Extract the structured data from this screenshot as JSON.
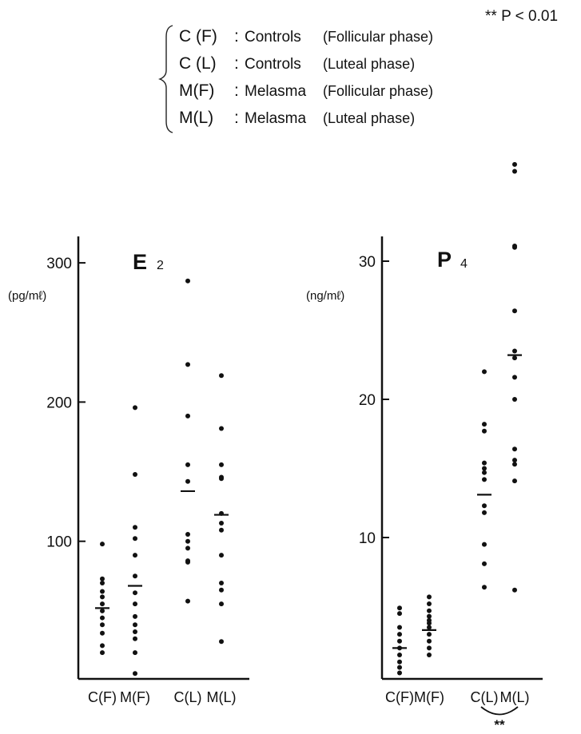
{
  "legend": {
    "items": [
      {
        "code": "C (F)",
        "group": "Controls",
        "phase": "(Follicular phase)"
      },
      {
        "code": "C (L)",
        "group": "Controls",
        "phase": "(Luteal phase)"
      },
      {
        "code": "M(F)",
        "group": "Melasma",
        "phase": "(Follicular phase)"
      },
      {
        "code": "M(L)",
        "group": "Melasma",
        "phase": "(Luteal phase)"
      }
    ],
    "sep": ":"
  },
  "significance": {
    "note": "** P < 0.01",
    "marker": "**"
  },
  "chart_data": [
    {
      "type": "scatter",
      "title": "E",
      "title_sub": "2",
      "ylabel": "(pg/mℓ)",
      "ylim": [
        0,
        320
      ],
      "yticks": [
        100,
        200,
        300
      ],
      "categories": [
        "C(F)",
        "M(F)",
        "C(L)",
        "M(L)"
      ],
      "series": [
        {
          "values": [
            98,
            73,
            70,
            64,
            60,
            55,
            50,
            45,
            40,
            34,
            25,
            20
          ],
          "mean": 52
        },
        {
          "values": [
            196,
            148,
            110,
            102,
            90,
            75,
            63,
            55,
            46,
            40,
            35,
            30,
            20,
            5
          ],
          "mean": 68
        },
        {
          "values": [
            287,
            227,
            190,
            155,
            143,
            105,
            100,
            95,
            86,
            85,
            57
          ],
          "mean": 136
        },
        {
          "values": [
            219,
            181,
            155,
            146,
            145,
            120,
            113,
            108,
            90,
            70,
            65,
            55,
            28
          ],
          "mean": 119
        }
      ]
    },
    {
      "type": "scatter",
      "title": "P",
      "title_sub": "4",
      "ylabel": "(ng/mℓ)",
      "ylim": [
        0,
        32
      ],
      "yticks": [
        10,
        20,
        30
      ],
      "categories": [
        "C(F)",
        "M(F)",
        "C(L)",
        "M(L)"
      ],
      "series": [
        {
          "values": [
            4.9,
            4.5,
            3.5,
            3.0,
            2.5,
            2.0,
            1.5,
            1.0,
            0.6,
            0.2
          ],
          "mean": 2.0
        },
        {
          "values": [
            5.7,
            5.2,
            4.7,
            4.3,
            4.0,
            3.8,
            3.5,
            3.0,
            2.5,
            2.0,
            1.5
          ],
          "mean": 3.3
        },
        {
          "values": [
            22.0,
            18.2,
            17.7,
            15.4,
            15.0,
            14.7,
            14.2,
            12.3,
            11.8,
            9.5,
            8.1,
            6.4
          ],
          "mean": 13.1
        },
        {
          "values": [
            37.0,
            36.5,
            31.1,
            31.0,
            26.4,
            23.5,
            23.0,
            21.6,
            20.0,
            16.4,
            15.6,
            15.3,
            14.1,
            6.2
          ],
          "mean": 23.2
        }
      ]
    }
  ]
}
